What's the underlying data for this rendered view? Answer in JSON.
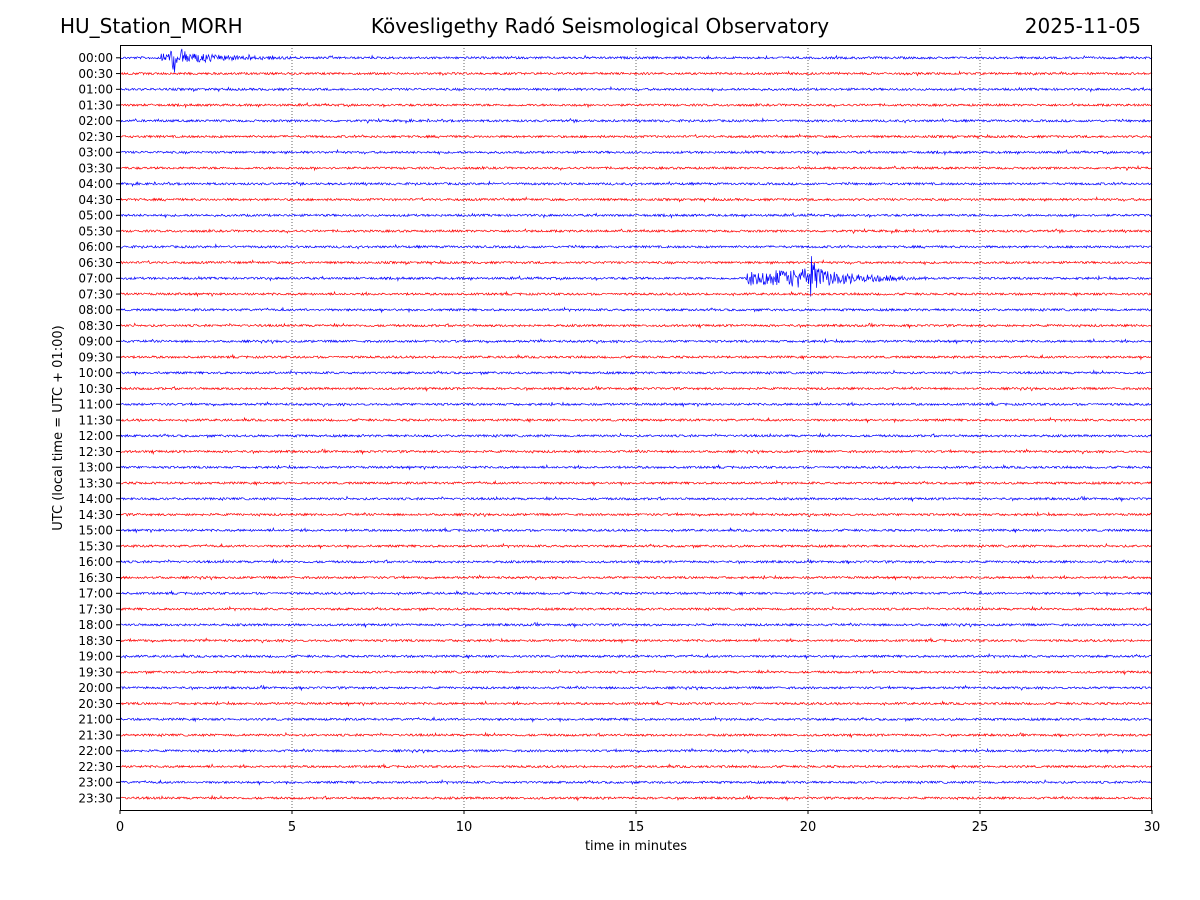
{
  "header": {
    "station": "HU_Station_MORH",
    "observatory": "Kövesligethy Radó Seismological Observatory",
    "date": "2025-11-05"
  },
  "chart_data": {
    "type": "line",
    "title": "Kövesligethy Radó Seismological Observatory",
    "xlabel": "time in minutes",
    "ylabel": "UTC (local time = UTC + 01:00)",
    "xlim": [
      0,
      30
    ],
    "x_ticks": [
      0,
      5,
      10,
      15,
      20,
      25,
      30
    ],
    "vertical_gridlines": [
      5,
      10,
      15,
      20,
      25
    ],
    "row_labels": [
      "00:00",
      "00:30",
      "01:00",
      "01:30",
      "02:00",
      "02:30",
      "03:00",
      "03:30",
      "04:00",
      "04:30",
      "05:00",
      "05:30",
      "06:00",
      "06:30",
      "07:00",
      "07:30",
      "08:00",
      "08:30",
      "09:00",
      "09:30",
      "10:00",
      "10:30",
      "11:00",
      "11:30",
      "12:00",
      "12:30",
      "13:00",
      "13:30",
      "14:00",
      "14:30",
      "15:00",
      "15:30",
      "16:00",
      "16:30",
      "17:00",
      "17:30",
      "18:00",
      "18:30",
      "19:00",
      "19:30",
      "20:00",
      "20:30",
      "21:00",
      "21:30",
      "22:00",
      "22:30",
      "23:00",
      "23:30"
    ],
    "trace_colors": [
      "#0000ff",
      "#ff0000"
    ],
    "events": [
      {
        "row": "00:00",
        "start_min": 1.2,
        "peak_min": 1.7,
        "end_min": 5.0,
        "amplitude": "moderate"
      },
      {
        "row": "07:00",
        "start_min": 18.2,
        "peak_min": 20.3,
        "end_min": 23.5,
        "amplitude": "large"
      }
    ]
  }
}
